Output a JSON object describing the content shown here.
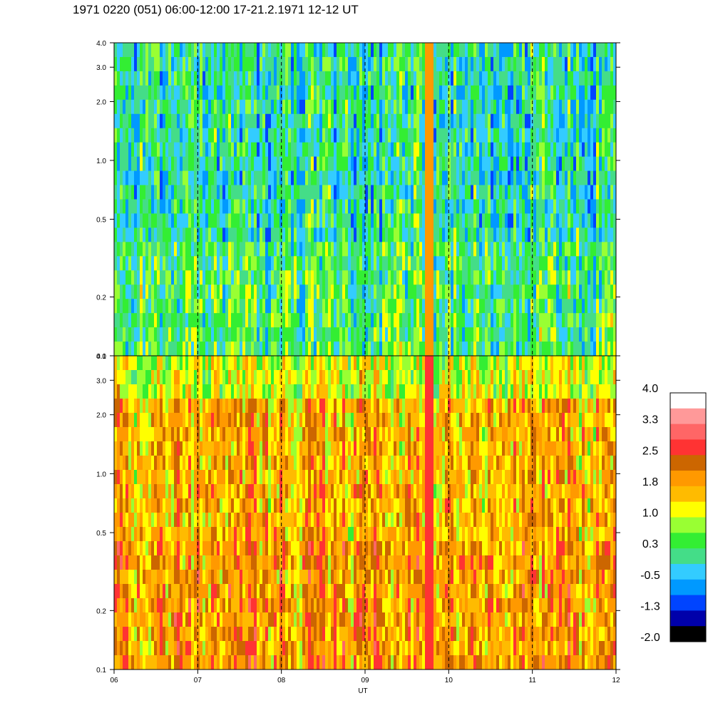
{
  "title": "1971 0220 (051) 06:00-12:00 17-21.2.1971 12-12 UT",
  "chart_data": {
    "type": "heatmap",
    "title": "1971 0220 (051) 06:00-12:00 17-21.2.1971 12-12 UT",
    "xlabel": "UT",
    "xlim": [
      6,
      12
    ],
    "x_ticks": [
      "06",
      "07",
      "08",
      "09",
      "10",
      "11",
      "12"
    ],
    "y_scale": "log",
    "ylim": [
      0.1,
      4.0
    ],
    "y_ticks": [
      "0.1",
      "0.2",
      "0.5",
      "1.0",
      "2.0",
      "3.0",
      "4.0"
    ],
    "grid": "vertical dashed lines at each hour",
    "panels": [
      {
        "position": "top",
        "dominant_level": 0.0,
        "note": "mostly green/cyan, one bright streak near 09:45"
      },
      {
        "position": "bottom",
        "dominant_level": 1.7,
        "note": "mostly yellow/orange, strong red streak near 09:45"
      }
    ],
    "colorbar": {
      "labels": [
        "4.0",
        "3.3",
        "2.5",
        "1.8",
        "1.0",
        "0.3",
        "-0.5",
        "-1.3",
        "-2.0"
      ],
      "colors": [
        "#ffffff",
        "#ff9999",
        "#ff6666",
        "#ff3333",
        "#cc6600",
        "#ff9900",
        "#ffbb00",
        "#ffff00",
        "#99ff33",
        "#33ee33",
        "#44dd88",
        "#33ccff",
        "#0099ff",
        "#0044ff",
        "#0000aa",
        "#000000"
      ]
    }
  }
}
